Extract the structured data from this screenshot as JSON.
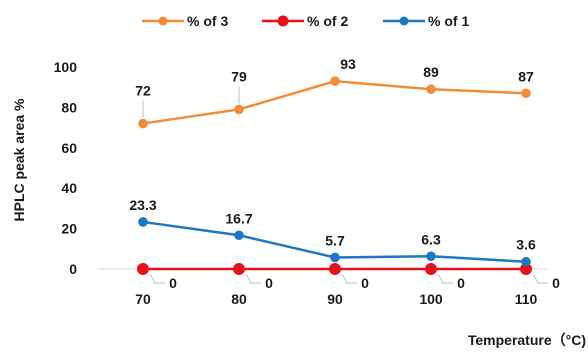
{
  "chart_data": {
    "type": "line",
    "xlabel": "Temperature（°C)",
    "ylabel": "HPLC peak area %",
    "categories": [
      "70",
      "80",
      "90",
      "100",
      "110"
    ],
    "yticks": [
      0,
      20,
      40,
      60,
      80,
      100
    ],
    "ylim": [
      0,
      100
    ],
    "grid": false,
    "legend_position": "top",
    "series": [
      {
        "name": "% of 3",
        "color": "#F28C38",
        "values": [
          72,
          79,
          93,
          89,
          87
        ],
        "labels": [
          "72",
          "79",
          "93",
          "89",
          "87"
        ]
      },
      {
        "name": "% of 2",
        "color": "#E8101A",
        "values": [
          0,
          0,
          0,
          0,
          0
        ],
        "labels": [
          "0",
          "0",
          "0",
          "0",
          "0"
        ]
      },
      {
        "name": "% of 1",
        "color": "#1F77C4",
        "values": [
          23.3,
          16.7,
          5.7,
          6.3,
          3.6
        ],
        "labels": [
          "23.3",
          "16.7",
          "5.7",
          "6.3",
          "3.6"
        ]
      }
    ]
  }
}
